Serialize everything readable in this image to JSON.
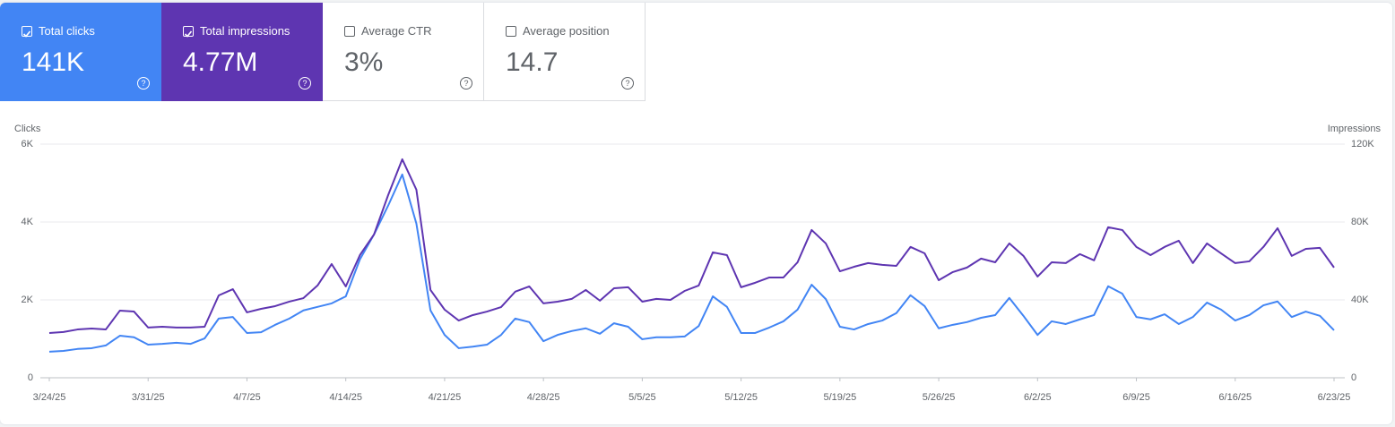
{
  "cards": [
    {
      "label": "Total clicks",
      "value": "141K",
      "checked": true,
      "color": "#4285f4"
    },
    {
      "label": "Total impressions",
      "value": "4.77M",
      "checked": true,
      "color": "#5e35b1"
    },
    {
      "label": "Average CTR",
      "value": "3%",
      "checked": false,
      "color": "#ffffff"
    },
    {
      "label": "Average position",
      "value": "14.7",
      "checked": false,
      "color": "#ffffff"
    }
  ],
  "chart_data": {
    "type": "line",
    "y_label": "Clicks",
    "y2_label": "Impressions",
    "grid": true,
    "categories": [
      "3/24/25",
      null,
      null,
      null,
      null,
      null,
      null,
      "3/31/25",
      null,
      null,
      null,
      null,
      null,
      null,
      "4/7/25",
      null,
      null,
      null,
      null,
      null,
      null,
      "4/14/25",
      null,
      null,
      null,
      null,
      null,
      null,
      "4/21/25",
      null,
      null,
      null,
      null,
      null,
      null,
      "4/28/25",
      null,
      null,
      null,
      null,
      null,
      null,
      "5/5/25",
      null,
      null,
      null,
      null,
      null,
      null,
      "5/12/25",
      null,
      null,
      null,
      null,
      null,
      null,
      "5/19/25",
      null,
      null,
      null,
      null,
      null,
      null,
      "5/26/25",
      null,
      null,
      null,
      null,
      null,
      null,
      "6/2/25",
      null,
      null,
      null,
      null,
      null,
      null,
      "6/9/25",
      null,
      null,
      null,
      null,
      null,
      null,
      "6/16/25",
      null,
      null,
      null,
      null,
      null,
      null,
      "6/23/25"
    ],
    "ylim": [
      0,
      6000
    ],
    "yticks": [
      0,
      {
        "value": 2000,
        "label": "2K"
      },
      {
        "value": 4000,
        "label": "4K"
      },
      {
        "value": 6000,
        "label": "6K"
      }
    ],
    "y2lim": [
      0,
      120000
    ],
    "y2ticks": [
      0,
      {
        "value": 40000,
        "label": "40K"
      },
      {
        "value": 80000,
        "label": "80K"
      },
      {
        "value": 120000,
        "label": "120K"
      }
    ],
    "series": [
      {
        "name": "Total clicks",
        "color": "#4285f4",
        "axis": "y",
        "values": [
          670,
          690,
          740,
          760,
          830,
          1080,
          1040,
          850,
          870,
          900,
          870,
          1010,
          1520,
          1560,
          1150,
          1170,
          1360,
          1520,
          1730,
          1820,
          1910,
          2090,
          3040,
          3680,
          4420,
          5220,
          3960,
          1730,
          1100,
          760,
          800,
          850,
          1100,
          1520,
          1430,
          940,
          1100,
          1200,
          1270,
          1130,
          1400,
          1310,
          990,
          1040,
          1040,
          1060,
          1330,
          2090,
          1820,
          1150,
          1150,
          1290,
          1450,
          1750,
          2390,
          2020,
          1310,
          1240,
          1380,
          1470,
          1660,
          2120,
          1840,
          1270,
          1360,
          1430,
          1540,
          1610,
          2050,
          1590,
          1100,
          1450,
          1380,
          1500,
          1610,
          2350,
          2160,
          1560,
          1500,
          1630,
          1380,
          1560,
          1930,
          1750,
          1470,
          1610,
          1860,
          1960,
          1560,
          1700,
          1590,
          1220
        ]
      },
      {
        "name": "Total impressions",
        "color": "#5e35b1",
        "axis": "y2",
        "values": [
          23000,
          23500,
          24800,
          25300,
          24800,
          34500,
          34000,
          25800,
          26200,
          25800,
          25800,
          26200,
          42300,
          45500,
          33600,
          35400,
          36800,
          39100,
          40900,
          47400,
          58400,
          46900,
          63000,
          73600,
          93800,
          112200,
          96600,
          45100,
          35000,
          29400,
          32200,
          34000,
          36300,
          44200,
          46900,
          38200,
          39100,
          40500,
          45100,
          39600,
          46000,
          46500,
          39100,
          40500,
          40000,
          44600,
          47400,
          64400,
          63000,
          46500,
          48800,
          51500,
          51500,
          59300,
          75900,
          69000,
          54700,
          57000,
          58900,
          58000,
          57500,
          67200,
          63900,
          50100,
          54300,
          56600,
          61200,
          59300,
          69000,
          62600,
          52000,
          59300,
          58900,
          63500,
          60300,
          77300,
          75900,
          67200,
          63000,
          67200,
          70400,
          58900,
          69000,
          63900,
          58900,
          59800,
          67200,
          76800,
          62600,
          66200,
          66700,
          56600
        ]
      }
    ]
  }
}
